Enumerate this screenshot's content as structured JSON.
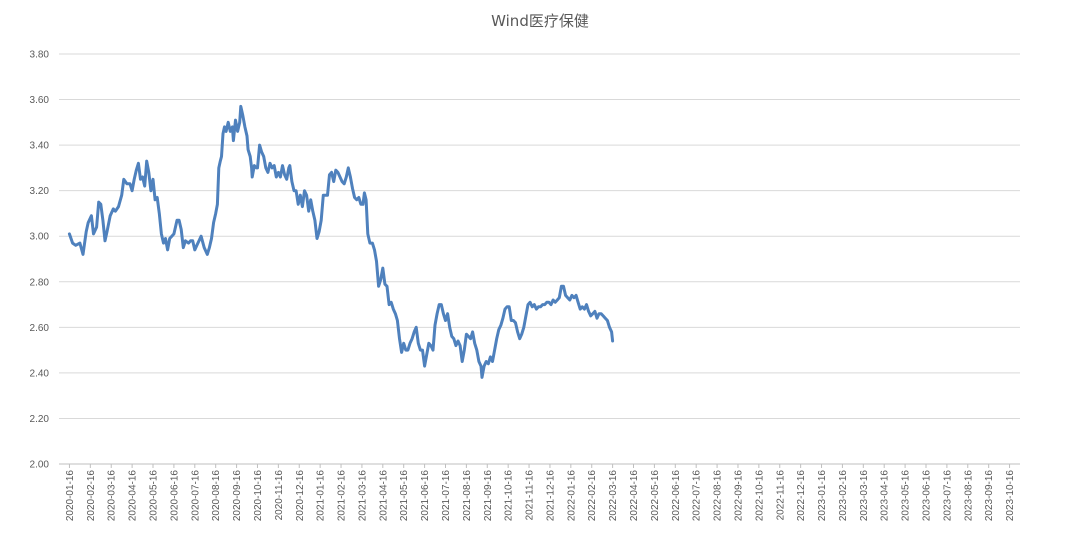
{
  "chart_data": {
    "type": "line",
    "title": "Wind医疗保健",
    "xlabel": "",
    "ylabel": "",
    "ylim": [
      2.0,
      3.8
    ],
    "yticks": [
      "2.00",
      "2.20",
      "2.40",
      "2.60",
      "2.80",
      "3.00",
      "3.20",
      "3.40",
      "3.60",
      "3.80"
    ],
    "grid": "horizontal",
    "color": "#4f81bd",
    "categories": [
      "2020-01-16",
      "2020-02-16",
      "2020-03-16",
      "2020-04-16",
      "2020-05-16",
      "2020-06-16",
      "2020-07-16",
      "2020-08-16",
      "2020-09-16",
      "2020-10-16",
      "2020-11-16",
      "2020-12-16",
      "2021-01-16",
      "2021-02-16",
      "2021-03-16",
      "2021-04-16",
      "2021-05-16",
      "2021-06-16",
      "2021-07-16",
      "2021-08-16",
      "2021-09-16",
      "2021-10-16",
      "2021-11-16",
      "2021-12-16",
      "2022-01-16",
      "2022-02-16",
      "2022-03-16",
      "2022-04-16",
      "2022-05-16",
      "2022-06-16",
      "2022-07-16",
      "2022-08-16",
      "2022-09-16",
      "2022-10-16",
      "2022-11-16",
      "2022-12-16",
      "2023-01-16",
      "2023-02-16",
      "2023-03-16",
      "2023-04-16",
      "2023-05-16",
      "2023-06-16",
      "2023-07-16",
      "2023-08-16",
      "2023-09-16",
      "2023-10-16"
    ],
    "series": [
      {
        "points": [
          [
            0,
            3.01
          ],
          [
            0.15,
            2.97
          ],
          [
            0.3,
            2.96
          ],
          [
            0.5,
            2.97
          ],
          [
            0.65,
            2.92
          ],
          [
            0.8,
            3.02
          ],
          [
            0.9,
            3.06
          ],
          [
            1.05,
            3.09
          ],
          [
            1.15,
            3.01
          ],
          [
            1.3,
            3.04
          ],
          [
            1.4,
            3.15
          ],
          [
            1.5,
            3.14
          ],
          [
            1.6,
            3.07
          ],
          [
            1.7,
            2.98
          ],
          [
            1.8,
            3.02
          ],
          [
            1.95,
            3.09
          ],
          [
            2.1,
            3.12
          ],
          [
            2.2,
            3.11
          ],
          [
            2.35,
            3.13
          ],
          [
            2.5,
            3.18
          ],
          [
            2.6,
            3.25
          ],
          [
            2.75,
            3.23
          ],
          [
            2.9,
            3.23
          ],
          [
            3.0,
            3.2
          ],
          [
            3.1,
            3.25
          ],
          [
            3.2,
            3.29
          ],
          [
            3.3,
            3.32
          ],
          [
            3.4,
            3.25
          ],
          [
            3.5,
            3.26
          ],
          [
            3.6,
            3.22
          ],
          [
            3.7,
            3.33
          ],
          [
            3.8,
            3.28
          ],
          [
            3.9,
            3.2
          ],
          [
            4.0,
            3.25
          ],
          [
            4.1,
            3.16
          ],
          [
            4.2,
            3.17
          ],
          [
            4.3,
            3.1
          ],
          [
            4.4,
            3.01
          ],
          [
            4.5,
            2.97
          ],
          [
            4.6,
            2.99
          ],
          [
            4.7,
            2.94
          ],
          [
            4.8,
            2.99
          ],
          [
            4.9,
            3.0
          ],
          [
            5.0,
            3.01
          ],
          [
            5.15,
            3.07
          ],
          [
            5.25,
            3.07
          ],
          [
            5.35,
            3.03
          ],
          [
            5.45,
            2.95
          ],
          [
            5.55,
            2.98
          ],
          [
            5.7,
            2.97
          ],
          [
            5.8,
            2.98
          ],
          [
            5.9,
            2.98
          ],
          [
            6.0,
            2.94
          ],
          [
            6.1,
            2.96
          ],
          [
            6.2,
            2.98
          ],
          [
            6.3,
            3.0
          ],
          [
            6.45,
            2.95
          ],
          [
            6.6,
            2.92
          ],
          [
            6.7,
            2.95
          ],
          [
            6.8,
            2.99
          ],
          [
            6.9,
            3.06
          ],
          [
            7.0,
            3.1
          ],
          [
            7.08,
            3.14
          ],
          [
            7.15,
            3.3
          ],
          [
            7.22,
            3.33
          ],
          [
            7.28,
            3.35
          ],
          [
            7.35,
            3.45
          ],
          [
            7.42,
            3.48
          ],
          [
            7.5,
            3.46
          ],
          [
            7.6,
            3.5
          ],
          [
            7.7,
            3.46
          ],
          [
            7.8,
            3.48
          ],
          [
            7.85,
            3.42
          ],
          [
            7.95,
            3.51
          ],
          [
            8.05,
            3.46
          ],
          [
            8.15,
            3.5
          ],
          [
            8.2,
            3.57
          ],
          [
            8.3,
            3.53
          ],
          [
            8.4,
            3.48
          ],
          [
            8.5,
            3.44
          ],
          [
            8.55,
            3.38
          ],
          [
            8.65,
            3.35
          ],
          [
            8.72,
            3.3
          ],
          [
            8.75,
            3.26
          ],
          [
            8.85,
            3.31
          ],
          [
            8.95,
            3.3
          ],
          [
            9.0,
            3.3
          ],
          [
            9.1,
            3.4
          ],
          [
            9.2,
            3.37
          ],
          [
            9.3,
            3.35
          ],
          [
            9.4,
            3.3
          ],
          [
            9.5,
            3.28
          ],
          [
            9.6,
            3.32
          ],
          [
            9.7,
            3.3
          ],
          [
            9.8,
            3.31
          ],
          [
            9.9,
            3.26
          ],
          [
            10.0,
            3.28
          ],
          [
            10.1,
            3.26
          ],
          [
            10.2,
            3.31
          ],
          [
            10.3,
            3.27
          ],
          [
            10.4,
            3.25
          ],
          [
            10.5,
            3.3
          ],
          [
            10.55,
            3.31
          ],
          [
            10.65,
            3.24
          ],
          [
            10.75,
            3.2
          ],
          [
            10.85,
            3.2
          ],
          [
            10.95,
            3.14
          ],
          [
            11.05,
            3.18
          ],
          [
            11.15,
            3.13
          ],
          [
            11.25,
            3.2
          ],
          [
            11.35,
            3.18
          ],
          [
            11.45,
            3.11
          ],
          [
            11.55,
            3.16
          ],
          [
            11.65,
            3.11
          ],
          [
            11.75,
            3.07
          ],
          [
            11.85,
            2.99
          ],
          [
            11.95,
            3.02
          ],
          [
            12.05,
            3.07
          ],
          [
            12.15,
            3.18
          ],
          [
            12.25,
            3.18
          ],
          [
            12.35,
            3.18
          ],
          [
            12.45,
            3.27
          ],
          [
            12.55,
            3.28
          ],
          [
            12.65,
            3.24
          ],
          [
            12.75,
            3.29
          ],
          [
            12.85,
            3.28
          ],
          [
            12.95,
            3.26
          ],
          [
            13.05,
            3.24
          ],
          [
            13.15,
            3.23
          ],
          [
            13.25,
            3.26
          ],
          [
            13.35,
            3.3
          ],
          [
            13.45,
            3.26
          ],
          [
            13.55,
            3.21
          ],
          [
            13.65,
            3.17
          ],
          [
            13.75,
            3.16
          ],
          [
            13.85,
            3.17
          ],
          [
            13.95,
            3.14
          ],
          [
            14.05,
            3.14
          ],
          [
            14.12,
            3.19
          ],
          [
            14.2,
            3.16
          ],
          [
            14.28,
            3.01
          ],
          [
            14.38,
            2.97
          ],
          [
            14.5,
            2.97
          ],
          [
            14.6,
            2.94
          ],
          [
            14.7,
            2.89
          ],
          [
            14.8,
            2.78
          ],
          [
            14.9,
            2.81
          ],
          [
            15.0,
            2.86
          ],
          [
            15.1,
            2.79
          ],
          [
            15.2,
            2.78
          ],
          [
            15.3,
            2.7
          ],
          [
            15.4,
            2.71
          ],
          [
            15.5,
            2.68
          ],
          [
            15.6,
            2.66
          ],
          [
            15.7,
            2.63
          ],
          [
            15.8,
            2.55
          ],
          [
            15.9,
            2.49
          ],
          [
            16.0,
            2.53
          ],
          [
            16.1,
            2.5
          ],
          [
            16.2,
            2.5
          ],
          [
            16.3,
            2.53
          ],
          [
            16.4,
            2.55
          ],
          [
            16.5,
            2.58
          ],
          [
            16.6,
            2.6
          ],
          [
            16.7,
            2.53
          ],
          [
            16.8,
            2.5
          ],
          [
            16.9,
            2.5
          ],
          [
            17.0,
            2.43
          ],
          [
            17.1,
            2.48
          ],
          [
            17.2,
            2.53
          ],
          [
            17.3,
            2.52
          ],
          [
            17.4,
            2.5
          ],
          [
            17.5,
            2.61
          ],
          [
            17.6,
            2.66
          ],
          [
            17.7,
            2.7
          ],
          [
            17.8,
            2.7
          ],
          [
            17.9,
            2.66
          ],
          [
            18.0,
            2.63
          ],
          [
            18.1,
            2.66
          ],
          [
            18.2,
            2.6
          ],
          [
            18.3,
            2.56
          ],
          [
            18.4,
            2.55
          ],
          [
            18.5,
            2.52
          ],
          [
            18.6,
            2.54
          ],
          [
            18.7,
            2.52
          ],
          [
            18.8,
            2.45
          ],
          [
            18.9,
            2.5
          ],
          [
            19.0,
            2.57
          ],
          [
            19.1,
            2.56
          ],
          [
            19.2,
            2.55
          ],
          [
            19.3,
            2.58
          ],
          [
            19.4,
            2.53
          ],
          [
            19.5,
            2.5
          ],
          [
            19.6,
            2.45
          ],
          [
            19.7,
            2.43
          ],
          [
            19.75,
            2.38
          ],
          [
            19.85,
            2.43
          ],
          [
            19.95,
            2.45
          ],
          [
            20.05,
            2.44
          ],
          [
            20.15,
            2.47
          ],
          [
            20.25,
            2.45
          ],
          [
            20.35,
            2.5
          ],
          [
            20.45,
            2.55
          ],
          [
            20.55,
            2.59
          ],
          [
            20.65,
            2.61
          ],
          [
            20.75,
            2.64
          ],
          [
            20.85,
            2.68
          ],
          [
            20.95,
            2.69
          ],
          [
            21.05,
            2.69
          ],
          [
            21.15,
            2.63
          ],
          [
            21.25,
            2.63
          ],
          [
            21.35,
            2.62
          ],
          [
            21.45,
            2.58
          ],
          [
            21.55,
            2.55
          ],
          [
            21.65,
            2.57
          ],
          [
            21.75,
            2.6
          ],
          [
            21.85,
            2.65
          ],
          [
            21.95,
            2.7
          ],
          [
            22.05,
            2.71
          ],
          [
            22.15,
            2.69
          ],
          [
            22.25,
            2.7
          ],
          [
            22.35,
            2.68
          ],
          [
            22.45,
            2.69
          ],
          [
            22.55,
            2.69
          ],
          [
            22.65,
            2.7
          ],
          [
            22.75,
            2.7
          ],
          [
            22.85,
            2.71
          ],
          [
            22.95,
            2.71
          ],
          [
            23.05,
            2.7
          ],
          [
            23.15,
            2.72
          ],
          [
            23.25,
            2.71
          ],
          [
            23.35,
            2.72
          ],
          [
            23.45,
            2.73
          ],
          [
            23.55,
            2.78
          ],
          [
            23.65,
            2.78
          ],
          [
            23.75,
            2.74
          ],
          [
            23.85,
            2.73
          ],
          [
            23.95,
            2.72
          ],
          [
            24.05,
            2.74
          ],
          [
            24.15,
            2.73
          ],
          [
            24.25,
            2.74
          ],
          [
            24.35,
            2.71
          ],
          [
            24.45,
            2.68
          ],
          [
            24.55,
            2.69
          ],
          [
            24.65,
            2.68
          ],
          [
            24.75,
            2.7
          ],
          [
            24.85,
            2.67
          ],
          [
            24.95,
            2.65
          ],
          [
            25.05,
            2.66
          ],
          [
            25.15,
            2.67
          ],
          [
            25.25,
            2.64
          ],
          [
            25.35,
            2.66
          ],
          [
            25.45,
            2.66
          ],
          [
            25.55,
            2.65
          ],
          [
            25.65,
            2.64
          ],
          [
            25.75,
            2.63
          ],
          [
            25.85,
            2.6
          ],
          [
            25.95,
            2.58
          ],
          [
            26.0,
            2.54
          ]
        ]
      }
    ]
  }
}
